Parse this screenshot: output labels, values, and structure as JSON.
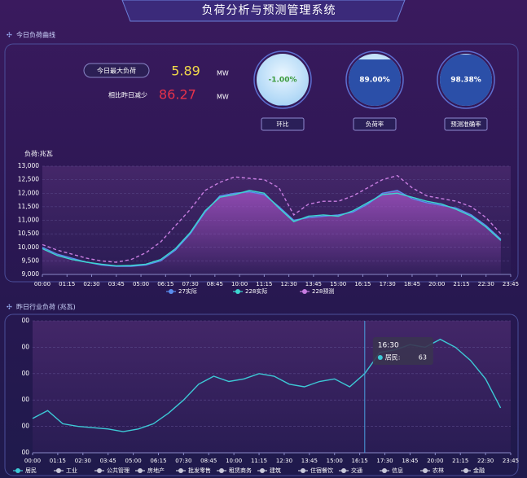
{
  "header": {
    "title": "负荷分析与预测管理系统"
  },
  "kpi": {
    "section_title": "今日负荷曲线",
    "max_label": "今日最大负荷",
    "max_value": "5.89",
    "max_unit": "MW",
    "change_label": "相比昨日减少",
    "change_value": "86.27",
    "change_unit": "MW",
    "gauges": [
      {
        "name": "环比",
        "value": -1,
        "value_label": "-1.00%"
      },
      {
        "name": "负荷率",
        "value": 89,
        "value_label": "89.00%"
      },
      {
        "name": "预测准确率",
        "value": 98.38,
        "value_label": "98.38%"
      }
    ]
  },
  "chart_data": [
    {
      "type": "line",
      "y_label": "负荷:兆瓦",
      "x": [
        0,
        45,
        90,
        135,
        180,
        225,
        270,
        315,
        360,
        405,
        450,
        495,
        540,
        585,
        630,
        675,
        720,
        765,
        810,
        855,
        900,
        945,
        990,
        1035,
        1080,
        1125,
        1170,
        1215,
        1260,
        1305,
        1350,
        1395
      ],
      "xlim": [
        0,
        1425
      ],
      "xticks": [
        {
          "value": 0,
          "label": "00:00"
        },
        {
          "value": 75,
          "label": "01:15"
        },
        {
          "value": 150,
          "label": "02:30"
        },
        {
          "value": 225,
          "label": "03:45"
        },
        {
          "value": 300,
          "label": "05:00"
        },
        {
          "value": 375,
          "label": "06:15"
        },
        {
          "value": 450,
          "label": "07:30"
        },
        {
          "value": 525,
          "label": "08:45"
        },
        {
          "value": 600,
          "label": "10:00"
        },
        {
          "value": 675,
          "label": "11:15"
        },
        {
          "value": 750,
          "label": "12:30"
        },
        {
          "value": 825,
          "label": "13:45"
        },
        {
          "value": 900,
          "label": "15:00"
        },
        {
          "value": 975,
          "label": "16:15"
        },
        {
          "value": 1050,
          "label": "17:30"
        },
        {
          "value": 1125,
          "label": "18:45"
        },
        {
          "value": 1200,
          "label": "20:00"
        },
        {
          "value": 1275,
          "label": "21:15"
        },
        {
          "value": 1350,
          "label": "22:30"
        },
        {
          "value": 1425,
          "label": "23:45"
        }
      ],
      "ylim": [
        9000,
        13000
      ],
      "yticks": [
        {
          "value": 9000,
          "label": "9,000"
        },
        {
          "value": 9500,
          "label": "9,500"
        },
        {
          "value": 10000,
          "label": "10,000"
        },
        {
          "value": 10500,
          "label": "10,500"
        },
        {
          "value": 11000,
          "label": "11,000"
        },
        {
          "value": 11500,
          "label": "11,500"
        },
        {
          "value": 12000,
          "label": "12,000"
        },
        {
          "value": 12500,
          "label": "12,500"
        },
        {
          "value": 13000,
          "label": "13,000"
        }
      ],
      "series": [
        {
          "name": "27实际",
          "color": "#5a8dee",
          "dashed": false,
          "values": [
            10000,
            9750,
            9600,
            9450,
            9350,
            9300,
            9300,
            9350,
            9500,
            9900,
            10500,
            11300,
            11900,
            12000,
            12050,
            11950,
            11500,
            11000,
            11100,
            11150,
            11200,
            11300,
            11600,
            12000,
            12100,
            11800,
            11650,
            11550,
            11450,
            11200,
            10800,
            10300
          ]
        },
        {
          "name": "228实际",
          "color": "#3dd6d0",
          "dashed": false,
          "values": [
            9950,
            9700,
            9550,
            9450,
            9380,
            9320,
            9330,
            9380,
            9550,
            9950,
            10550,
            11350,
            11850,
            11950,
            12100,
            12000,
            11450,
            10950,
            11150,
            11200,
            11150,
            11350,
            11650,
            11950,
            12000,
            11850,
            11700,
            11600,
            11400,
            11150,
            10750,
            10250
          ]
        },
        {
          "name": "228预测",
          "color": "#c77de0",
          "dashed": true,
          "values": [
            10100,
            9900,
            9750,
            9600,
            9500,
            9450,
            9550,
            9800,
            10200,
            10800,
            11400,
            12100,
            12400,
            12600,
            12550,
            12500,
            12200,
            11200,
            11600,
            11700,
            11700,
            11900,
            12200,
            12500,
            12650,
            12200,
            11900,
            11800,
            11700,
            11500,
            11100,
            10500
          ]
        }
      ]
    },
    {
      "type": "line",
      "title": "昨日行业负荷 (兆瓦)",
      "x": [
        0,
        45,
        90,
        135,
        180,
        225,
        270,
        315,
        360,
        405,
        450,
        495,
        540,
        585,
        630,
        675,
        720,
        765,
        810,
        855,
        900,
        945,
        990,
        1035,
        1080,
        1125,
        1170,
        1215,
        1260,
        1305,
        1350,
        1395
      ],
      "xlim": [
        0,
        1425
      ],
      "xticks": [
        {
          "value": 0,
          "label": "00:00"
        },
        {
          "value": 75,
          "label": "01:15"
        },
        {
          "value": 150,
          "label": "02:30"
        },
        {
          "value": 225,
          "label": "03:45"
        },
        {
          "value": 300,
          "label": "05:00"
        },
        {
          "value": 375,
          "label": "06:15"
        },
        {
          "value": 450,
          "label": "07:30"
        },
        {
          "value": 525,
          "label": "08:45"
        },
        {
          "value": 600,
          "label": "10:00"
        },
        {
          "value": 675,
          "label": "11:15"
        },
        {
          "value": 750,
          "label": "12:30"
        },
        {
          "value": 825,
          "label": "13:45"
        },
        {
          "value": 900,
          "label": "15:00"
        },
        {
          "value": 975,
          "label": "16:15"
        },
        {
          "value": 1050,
          "label": "17:30"
        },
        {
          "value": 1125,
          "label": "18:45"
        },
        {
          "value": 1200,
          "label": "20:00"
        },
        {
          "value": 1275,
          "label": "21:15"
        },
        {
          "value": 1350,
          "label": "22:30"
        },
        {
          "value": 1425,
          "label": "23:45"
        }
      ],
      "ylim": [
        0,
        500
      ],
      "yticks": [
        {
          "value": 0,
          "label": "00"
        },
        {
          "value": 100,
          "label": "00"
        },
        {
          "value": 200,
          "label": "00"
        },
        {
          "value": 300,
          "label": "00"
        },
        {
          "value": 400,
          "label": "00"
        },
        {
          "value": 500,
          "label": "00"
        }
      ],
      "series": [
        {
          "name": "居民",
          "color": "#3dc9d6",
          "dashed": false,
          "values": [
            130,
            160,
            110,
            100,
            95,
            90,
            80,
            90,
            110,
            150,
            200,
            260,
            290,
            270,
            280,
            300,
            290,
            260,
            250,
            270,
            280,
            250,
            300,
            380,
            390,
            410,
            400,
            430,
            400,
            350,
            280,
            170
          ]
        }
      ],
      "legend_extra": [
        "工业",
        "公共管理",
        "房地产",
        "批发零售",
        "租赁商务",
        "建筑",
        "住宿餐饮",
        "交通",
        "信息",
        "农林",
        "金融"
      ],
      "tooltip": {
        "time": "16:30",
        "name": "居民:",
        "value": "63"
      }
    }
  ]
}
